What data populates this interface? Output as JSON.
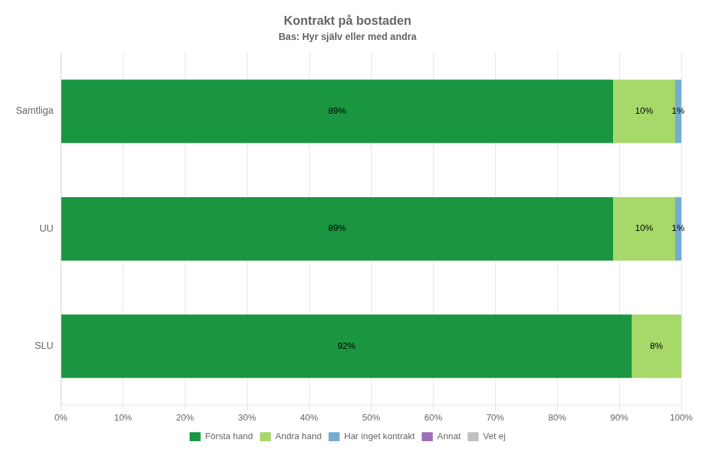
{
  "chart_data": {
    "type": "bar",
    "orientation": "horizontal",
    "stacked": true,
    "title": "Kontrakt på bostaden",
    "subtitle": "Bas: Hyr själv eller med andra",
    "categories": [
      "SLU",
      "UU",
      "Samtliga"
    ],
    "series": [
      {
        "name": "Första hand",
        "color": "#1a9641",
        "values": [
          92,
          89,
          89
        ],
        "value_labels": [
          "92%",
          "89%",
          "89%"
        ]
      },
      {
        "name": "Andra hand",
        "color": "#a6d96a",
        "values": [
          8,
          10,
          10
        ],
        "value_labels": [
          "8%",
          "10%",
          "10%"
        ]
      },
      {
        "name": "Har inget kontrakt",
        "color": "#74add1",
        "values": [
          0,
          1,
          1
        ],
        "value_labels": [
          null,
          "1%",
          "1%"
        ]
      },
      {
        "name": "Annat",
        "color": "#9e6ebd",
        "values": [
          0,
          0,
          0
        ],
        "value_labels": [
          null,
          null,
          null
        ]
      },
      {
        "name": "Vet ej",
        "color": "#c0c0c0",
        "values": [
          0,
          0,
          0
        ],
        "value_labels": [
          null,
          null,
          null
        ]
      }
    ],
    "xlim": [
      0,
      100
    ],
    "xticks": [
      {
        "value": 0,
        "label": "0%"
      },
      {
        "value": 10,
        "label": "10%"
      },
      {
        "value": 20,
        "label": "20%"
      },
      {
        "value": 30,
        "label": "30%"
      },
      {
        "value": 40,
        "label": "40%"
      },
      {
        "value": 50,
        "label": "50%"
      },
      {
        "value": 60,
        "label": "60%"
      },
      {
        "value": 70,
        "label": "70%"
      },
      {
        "value": 80,
        "label": "80%"
      },
      {
        "value": 90,
        "label": "90%"
      },
      {
        "value": 100,
        "label": "100%"
      }
    ],
    "grid": "x",
    "legend": "bottom",
    "data_labels": true
  }
}
